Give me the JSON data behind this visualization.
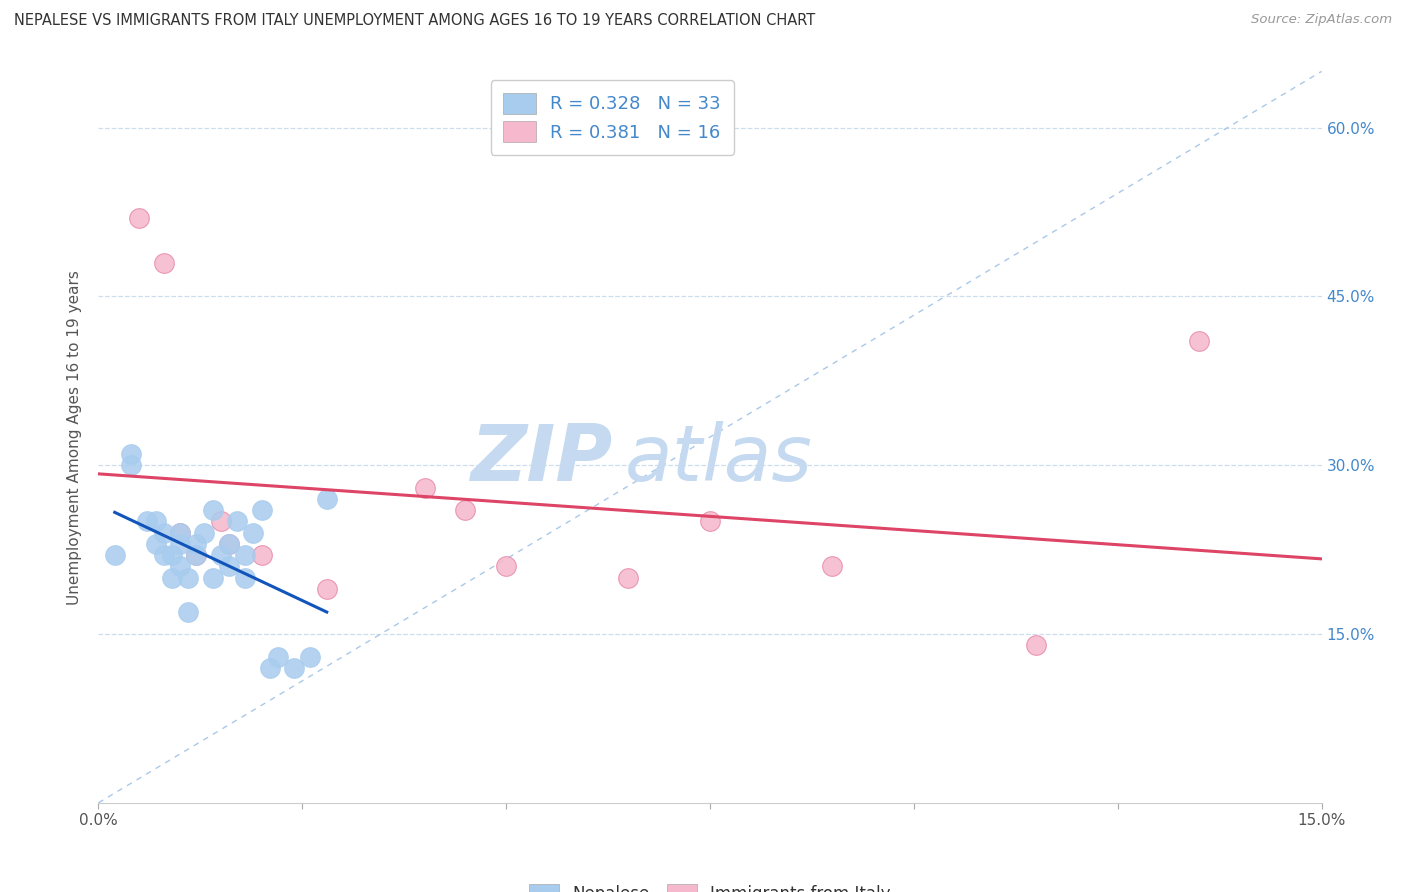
{
  "title": "NEPALESE VS IMMIGRANTS FROM ITALY UNEMPLOYMENT AMONG AGES 16 TO 19 YEARS CORRELATION CHART",
  "source": "Source: ZipAtlas.com",
  "ylabel": "Unemployment Among Ages 16 to 19 years",
  "xlim": [
    0.0,
    0.15
  ],
  "ylim": [
    0.0,
    0.65
  ],
  "x_ticks": [
    0.0,
    0.025,
    0.05,
    0.075,
    0.1,
    0.125,
    0.15
  ],
  "x_tick_labels": [
    "0.0%",
    "",
    "",
    "",
    "",
    "",
    "15.0%"
  ],
  "y_ticks_right": [
    0.15,
    0.3,
    0.45,
    0.6
  ],
  "y_tick_labels_right": [
    "15.0%",
    "30.0%",
    "45.0%",
    "60.0%"
  ],
  "nepalese_color": "#a8ccee",
  "nepalese_edge_color": "#a8ccee",
  "italy_color": "#f5b8cc",
  "italy_edge_color": "#e88aaa",
  "nepalese_R": 0.328,
  "nepalese_N": 33,
  "italy_R": 0.381,
  "italy_N": 16,
  "nepalese_x": [
    0.002,
    0.004,
    0.004,
    0.006,
    0.007,
    0.007,
    0.008,
    0.008,
    0.009,
    0.009,
    0.01,
    0.01,
    0.01,
    0.011,
    0.011,
    0.012,
    0.012,
    0.013,
    0.014,
    0.014,
    0.015,
    0.016,
    0.016,
    0.017,
    0.018,
    0.018,
    0.019,
    0.02,
    0.021,
    0.022,
    0.024,
    0.026,
    0.028
  ],
  "nepalese_y": [
    0.22,
    0.3,
    0.31,
    0.25,
    0.23,
    0.25,
    0.22,
    0.24,
    0.2,
    0.22,
    0.21,
    0.23,
    0.24,
    0.17,
    0.2,
    0.22,
    0.23,
    0.24,
    0.2,
    0.26,
    0.22,
    0.21,
    0.23,
    0.25,
    0.2,
    0.22,
    0.24,
    0.26,
    0.12,
    0.13,
    0.12,
    0.13,
    0.27
  ],
  "italy_x": [
    0.005,
    0.008,
    0.01,
    0.012,
    0.015,
    0.016,
    0.02,
    0.028,
    0.04,
    0.045,
    0.05,
    0.065,
    0.075,
    0.09,
    0.115,
    0.135
  ],
  "italy_y": [
    0.52,
    0.48,
    0.24,
    0.22,
    0.25,
    0.23,
    0.22,
    0.19,
    0.28,
    0.26,
    0.21,
    0.2,
    0.25,
    0.21,
    0.14,
    0.41
  ],
  "diag_line_color": "#aac8e8",
  "nepalese_trend_color": "#1155bb",
  "italy_trend_color": "#dd4466",
  "watermark_zip": "ZIP",
  "watermark_atlas": "atlas",
  "watermark_color": "#c5daf0",
  "background_color": "#ffffff",
  "grid_color": "#ccddee",
  "legend_edge_color": "#cccccc"
}
